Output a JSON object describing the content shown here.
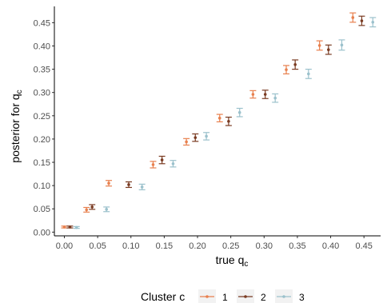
{
  "chart_data": {
    "type": "scatter",
    "x_tick_labels": [
      "0.00",
      "0.05",
      "0.10",
      "0.15",
      "0.20",
      "0.25",
      "0.30",
      "0.35",
      "0.40",
      "0.45"
    ],
    "y_tick_labels": [
      "0.00",
      "0.05",
      "0.10",
      "0.15",
      "0.20",
      "0.25",
      "0.30",
      "0.35",
      "0.40",
      "0.45"
    ],
    "xlabel": "true q",
    "xlabel_sub": "c",
    "ylabel": "posterior for q",
    "ylabel_sub": "c",
    "xlim": [
      -0.015,
      0.475
    ],
    "ylim": [
      -0.008,
      0.485
    ],
    "grid": false,
    "legend": {
      "position": "bottom",
      "title": "Cluster c"
    },
    "series": [
      {
        "name": "1",
        "color": "#E8804E",
        "x": [
          0.0,
          0.0333,
          0.0667,
          0.1333,
          0.1833,
          0.2333,
          0.2833,
          0.3333,
          0.3833,
          0.4333
        ],
        "y": [
          0.011,
          0.048,
          0.105,
          0.145,
          0.194,
          0.245,
          0.296,
          0.349,
          0.401,
          0.461
        ],
        "lower": [
          0.009,
          0.043,
          0.099,
          0.138,
          0.187,
          0.237,
          0.288,
          0.34,
          0.391,
          0.451
        ],
        "upper": [
          0.013,
          0.053,
          0.111,
          0.152,
          0.201,
          0.253,
          0.304,
          0.358,
          0.411,
          0.471
        ]
      },
      {
        "name": "2",
        "color": "#7A3B22",
        "x": [
          0.0083,
          0.0417,
          0.0967,
          0.1467,
          0.1967,
          0.2467,
          0.3017,
          0.3467,
          0.3967,
          0.4467
        ],
        "y": [
          0.011,
          0.054,
          0.102,
          0.155,
          0.203,
          0.238,
          0.296,
          0.36,
          0.392,
          0.454
        ],
        "lower": [
          0.009,
          0.049,
          0.096,
          0.147,
          0.195,
          0.229,
          0.287,
          0.35,
          0.382,
          0.444
        ],
        "upper": [
          0.013,
          0.059,
          0.108,
          0.163,
          0.211,
          0.247,
          0.305,
          0.37,
          0.402,
          0.464
        ]
      },
      {
        "name": "3",
        "color": "#9BC1CC",
        "x": [
          0.0183,
          0.0633,
          0.1167,
          0.1633,
          0.2133,
          0.2633,
          0.3167,
          0.3667,
          0.4167,
          0.4633
        ],
        "y": [
          0.01,
          0.049,
          0.097,
          0.147,
          0.206,
          0.257,
          0.288,
          0.34,
          0.402,
          0.451
        ],
        "lower": [
          0.008,
          0.044,
          0.091,
          0.14,
          0.198,
          0.248,
          0.279,
          0.33,
          0.391,
          0.441
        ],
        "upper": [
          0.012,
          0.054,
          0.103,
          0.154,
          0.214,
          0.266,
          0.297,
          0.35,
          0.413,
          0.461
        ]
      }
    ]
  }
}
